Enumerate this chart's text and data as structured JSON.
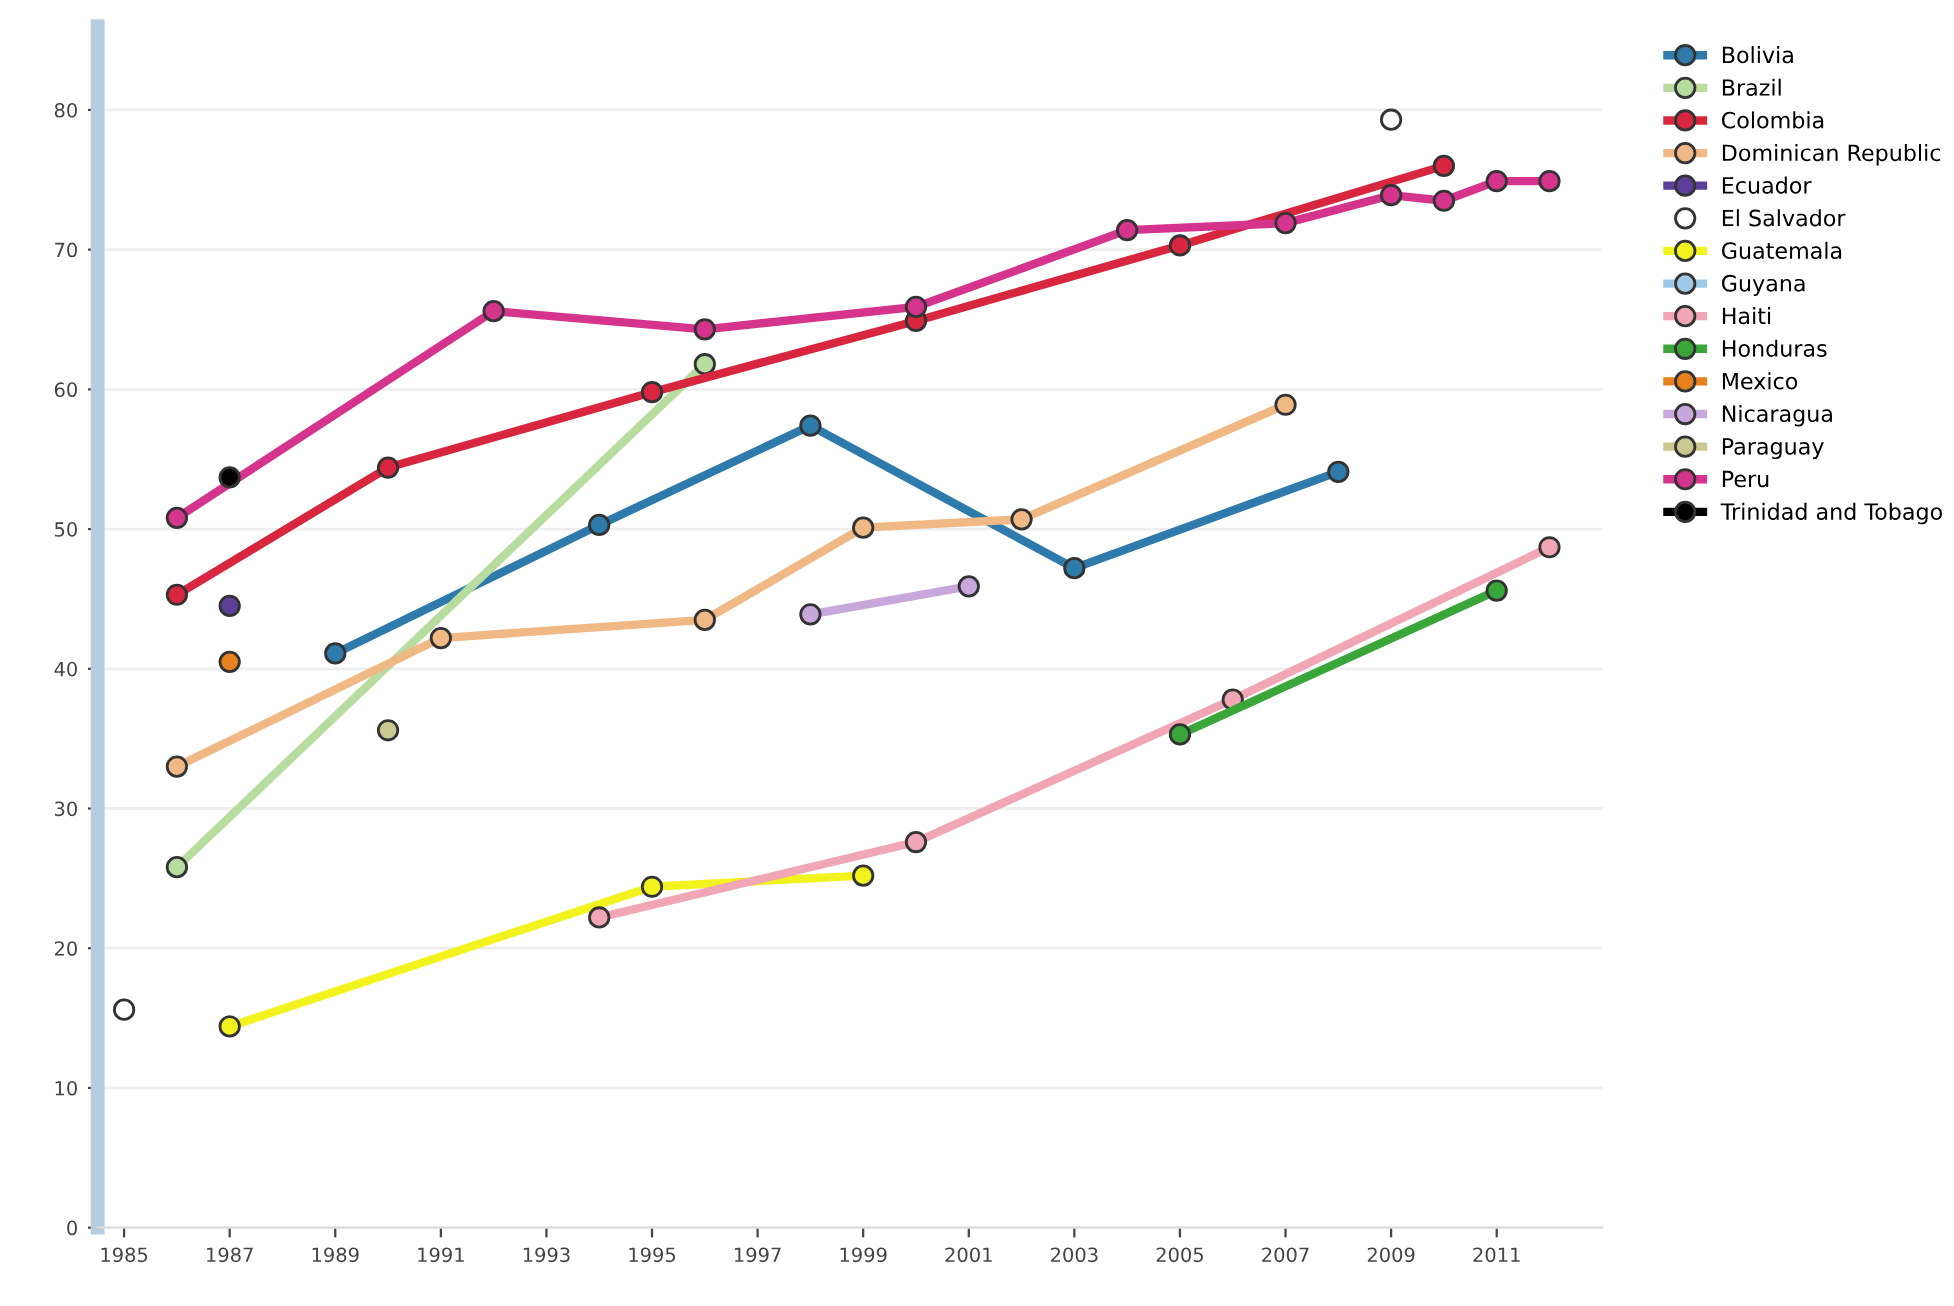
{
  "chart_data": {
    "type": "line",
    "xlim": [
      1984.5,
      2013
    ],
    "ylim": [
      0,
      86
    ],
    "xticks": [
      1985,
      1987,
      1989,
      1991,
      1993,
      1995,
      1997,
      1999,
      2001,
      2003,
      2005,
      2007,
      2009,
      2011
    ],
    "yticks": [
      0,
      10,
      20,
      30,
      40,
      50,
      60,
      70,
      80
    ],
    "grid": "y",
    "legend": "right",
    "marker": "circle",
    "line_style": "solid",
    "series": [
      {
        "name": "Bolivia",
        "color": "#2e7bab",
        "x": [
          1989,
          1994,
          1998,
          2003,
          2008
        ],
        "values": [
          41.1,
          50.3,
          57.4,
          47.2,
          54.1
        ]
      },
      {
        "name": "Brazil",
        "color": "#b8dca0",
        "x": [
          1986,
          1996
        ],
        "values": [
          25.8,
          61.8
        ]
      },
      {
        "name": "Colombia",
        "color": "#d7263d",
        "x": [
          1986,
          1990,
          1995,
          2000,
          2005,
          2010
        ],
        "values": [
          45.3,
          54.4,
          59.8,
          64.9,
          70.3,
          76.0
        ]
      },
      {
        "name": "Dominican Republic",
        "color": "#f0b884",
        "x": [
          1986,
          1991,
          1996,
          1999,
          2002,
          2007
        ],
        "values": [
          33.0,
          42.2,
          43.5,
          50.1,
          50.7,
          58.9
        ]
      },
      {
        "name": "Ecuador",
        "color": "#5b3f9a",
        "x": [
          1987
        ],
        "values": [
          44.5
        ]
      },
      {
        "name": "El Salvador",
        "color": "#ffffff",
        "type": "scatter",
        "x": [
          1985,
          2009
        ],
        "values": [
          15.6,
          79.3
        ]
      },
      {
        "name": "Guatemala",
        "color": "#f2f21e",
        "x": [
          1987,
          1995,
          1999
        ],
        "values": [
          14.4,
          24.4,
          25.2
        ]
      },
      {
        "name": "Guyana",
        "color": "#9ec8e6"
      },
      {
        "name": "Haiti",
        "color": "#f0a6b4",
        "x": [
          1994,
          2000,
          2006,
          2012
        ],
        "values": [
          22.2,
          27.6,
          37.8,
          48.7
        ]
      },
      {
        "name": "Honduras",
        "color": "#3aa63a",
        "x": [
          2005,
          2011
        ],
        "values": [
          35.3,
          45.6
        ]
      },
      {
        "name": "Mexico",
        "color": "#e8821e",
        "x": [
          1987
        ],
        "values": [
          40.5
        ]
      },
      {
        "name": "Nicaragua",
        "color": "#c8a8dc",
        "x": [
          1998,
          2001
        ],
        "values": [
          43.9,
          45.9
        ]
      },
      {
        "name": "Paraguay",
        "color": "#c8c890",
        "x": [
          1990
        ],
        "values": [
          35.6
        ]
      },
      {
        "name": "Peru",
        "color": "#d4348c",
        "x": [
          1986,
          1992,
          1996,
          2000,
          2004,
          2007,
          2009,
          2010,
          2011,
          2012
        ],
        "values": [
          50.8,
          65.6,
          64.3,
          65.9,
          71.4,
          71.9,
          73.9,
          73.5,
          74.9,
          74.9
        ]
      },
      {
        "name": "Trinidad and Tobago",
        "color": "#000000",
        "x": [
          1987
        ],
        "values": [
          53.7
        ]
      }
    ]
  }
}
